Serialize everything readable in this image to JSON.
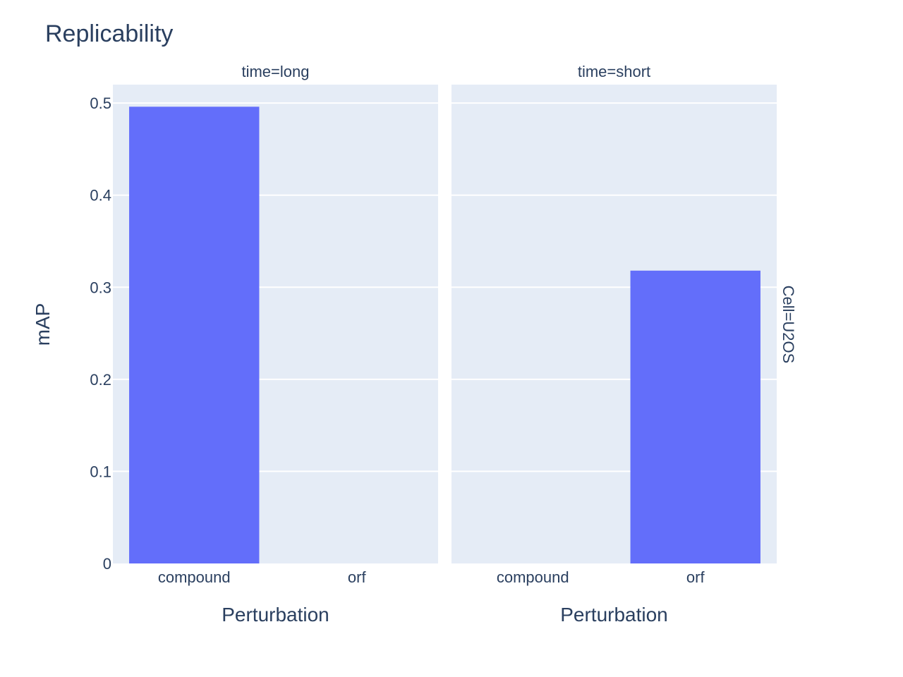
{
  "chart_data": {
    "type": "bar",
    "title": "Replicability",
    "ylabel": "mAP",
    "ylim": [
      0,
      0.52
    ],
    "yticks": [
      0,
      0.1,
      0.2,
      0.3,
      0.4,
      0.5
    ],
    "ytick_labels": [
      "0",
      "0.1",
      "0.2",
      "0.3",
      "0.4",
      "0.5"
    ],
    "row_facet_label": "Cell=U2OS",
    "bar_color": "#636efa",
    "panel_bg": "#e5ecf6",
    "facets": [
      {
        "title": "time=long",
        "xlabel": "Perturbation",
        "categories": [
          "compound",
          "orf"
        ],
        "values": [
          0.496,
          null
        ]
      },
      {
        "title": "time=short",
        "xlabel": "Perturbation",
        "categories": [
          "compound",
          "orf"
        ],
        "values": [
          null,
          0.318
        ]
      }
    ]
  }
}
